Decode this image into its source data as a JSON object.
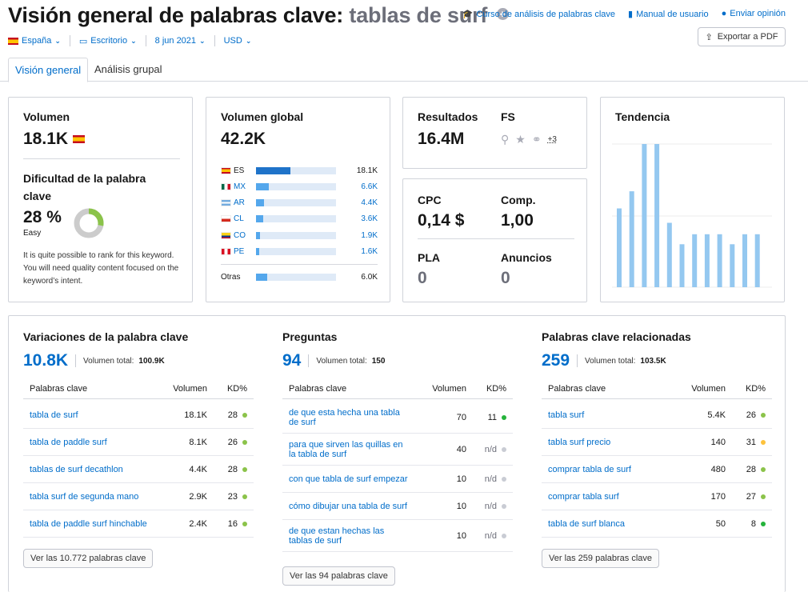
{
  "header": {
    "title_prefix": "Visión general de palabras clave:",
    "title_keyword": "tablas de surf",
    "links": [
      "Curso de análisis de palabras clave",
      "Manual de usuario",
      "Enviar opinión"
    ],
    "export_label": "Exportar a PDF"
  },
  "filters": {
    "country": "España",
    "device": "Escritorio",
    "date": "8 jun 2021",
    "currency": "USD"
  },
  "tabs": [
    "Visión general",
    "Análisis grupal"
  ],
  "volume": {
    "label": "Volumen",
    "value": "18.1K",
    "difficulty_label": "Dificultad de la palabra clave",
    "difficulty_value": "28 %",
    "difficulty_percent": 28,
    "difficulty_level": "Easy",
    "difficulty_desc": "It is quite possible to rank for this keyword. You will need quality content focused on the keyword’s intent."
  },
  "global_volume": {
    "label": "Volumen global",
    "value": "42.2K",
    "rows": [
      {
        "code": "ES",
        "value": "18.1K",
        "ratio": 0.43,
        "link": false
      },
      {
        "code": "MX",
        "value": "6.6K",
        "ratio": 0.16,
        "link": true
      },
      {
        "code": "AR",
        "value": "4.4K",
        "ratio": 0.1,
        "link": true
      },
      {
        "code": "CL",
        "value": "3.6K",
        "ratio": 0.09,
        "link": true
      },
      {
        "code": "CO",
        "value": "1.9K",
        "ratio": 0.05,
        "link": true
      },
      {
        "code": "PE",
        "value": "1.6K",
        "ratio": 0.04,
        "link": true
      }
    ],
    "others_label": "Otras",
    "others_value": "6.0K",
    "others_ratio": 0.14
  },
  "serp": {
    "results_label": "Resultados",
    "results_value": "16.4M",
    "fs_label": "FS",
    "fs_more": "+3"
  },
  "cpc": {
    "cpc_label": "CPC",
    "cpc_value": "0,14 $",
    "comp_label": "Comp.",
    "comp_value": "1,00",
    "pla_label": "PLA",
    "pla_value": "0",
    "ads_label": "Anuncios",
    "ads_value": "0"
  },
  "trend": {
    "label": "Tendencia",
    "values": [
      0.55,
      0.67,
      1.0,
      1.0,
      0.45,
      0.3,
      0.37,
      0.37,
      0.37,
      0.3,
      0.37,
      0.37
    ]
  },
  "variations": {
    "title": "Variaciones de la palabra clave",
    "count": "10.8K",
    "total_label": "Volumen total:",
    "total_value": "100.9K",
    "cols": [
      "Palabras clave",
      "Volumen",
      "KD%"
    ],
    "rows": [
      {
        "kw": "tabla de surf",
        "vol": "18.1K",
        "kd": "28",
        "color": "#8bc34a"
      },
      {
        "kw": "tabla de paddle surf",
        "vol": "8.1K",
        "kd": "26",
        "color": "#8bc34a"
      },
      {
        "kw": "tablas de surf decathlon",
        "vol": "4.4K",
        "kd": "28",
        "color": "#8bc34a"
      },
      {
        "kw": "tabla surf de segunda mano",
        "vol": "2.9K",
        "kd": "23",
        "color": "#8bc34a"
      },
      {
        "kw": "tabla de paddle surf hinchable",
        "vol": "2.4K",
        "kd": "16",
        "color": "#8bc34a"
      }
    ],
    "button": "Ver las 10.772 palabras clave"
  },
  "questions": {
    "title": "Preguntas",
    "count": "94",
    "total_label": "Volumen total:",
    "total_value": "150",
    "cols": [
      "Palabras clave",
      "Volumen",
      "KD%"
    ],
    "rows": [
      {
        "kw": "de que esta hecha una tabla de surf",
        "vol": "70",
        "kd": "11",
        "color": "#25b33b"
      },
      {
        "kw": "para que sirven las quillas en la tabla de surf",
        "vol": "40",
        "kd": "n/d",
        "color": "#c9ccd4"
      },
      {
        "kw": "con que tabla de surf empezar",
        "vol": "10",
        "kd": "n/d",
        "color": "#c9ccd4"
      },
      {
        "kw": "cómo dibujar una tabla de surf",
        "vol": "10",
        "kd": "n/d",
        "color": "#c9ccd4"
      },
      {
        "kw": "de que estan hechas las tablas de surf",
        "vol": "10",
        "kd": "n/d",
        "color": "#c9ccd4"
      }
    ],
    "button": "Ver las 94 palabras clave"
  },
  "related": {
    "title": "Palabras clave relacionadas",
    "count": "259",
    "total_label": "Volumen total:",
    "total_value": "103.5K",
    "cols": [
      "Palabras clave",
      "Volumen",
      "KD%"
    ],
    "rows": [
      {
        "kw": "tabla surf",
        "vol": "5.4K",
        "kd": "26",
        "color": "#8bc34a"
      },
      {
        "kw": "tabla surf precio",
        "vol": "140",
        "kd": "31",
        "color": "#fdc23c"
      },
      {
        "kw": "comprar tabla de surf",
        "vol": "480",
        "kd": "28",
        "color": "#8bc34a"
      },
      {
        "kw": "comprar tabla surf",
        "vol": "170",
        "kd": "27",
        "color": "#8bc34a"
      },
      {
        "kw": "tabla de surf blanca",
        "vol": "50",
        "kd": "8",
        "color": "#25b33b"
      }
    ],
    "button": "Ver las 259 palabras clave"
  },
  "colors": {
    "accent": "#006dca",
    "bar": "#54a7ec",
    "bar_bg": "#dfeaf7",
    "trend_bar": "#94c8f0",
    "donut_fill": "#8bc34a",
    "donut_bg": "#cccccc"
  }
}
